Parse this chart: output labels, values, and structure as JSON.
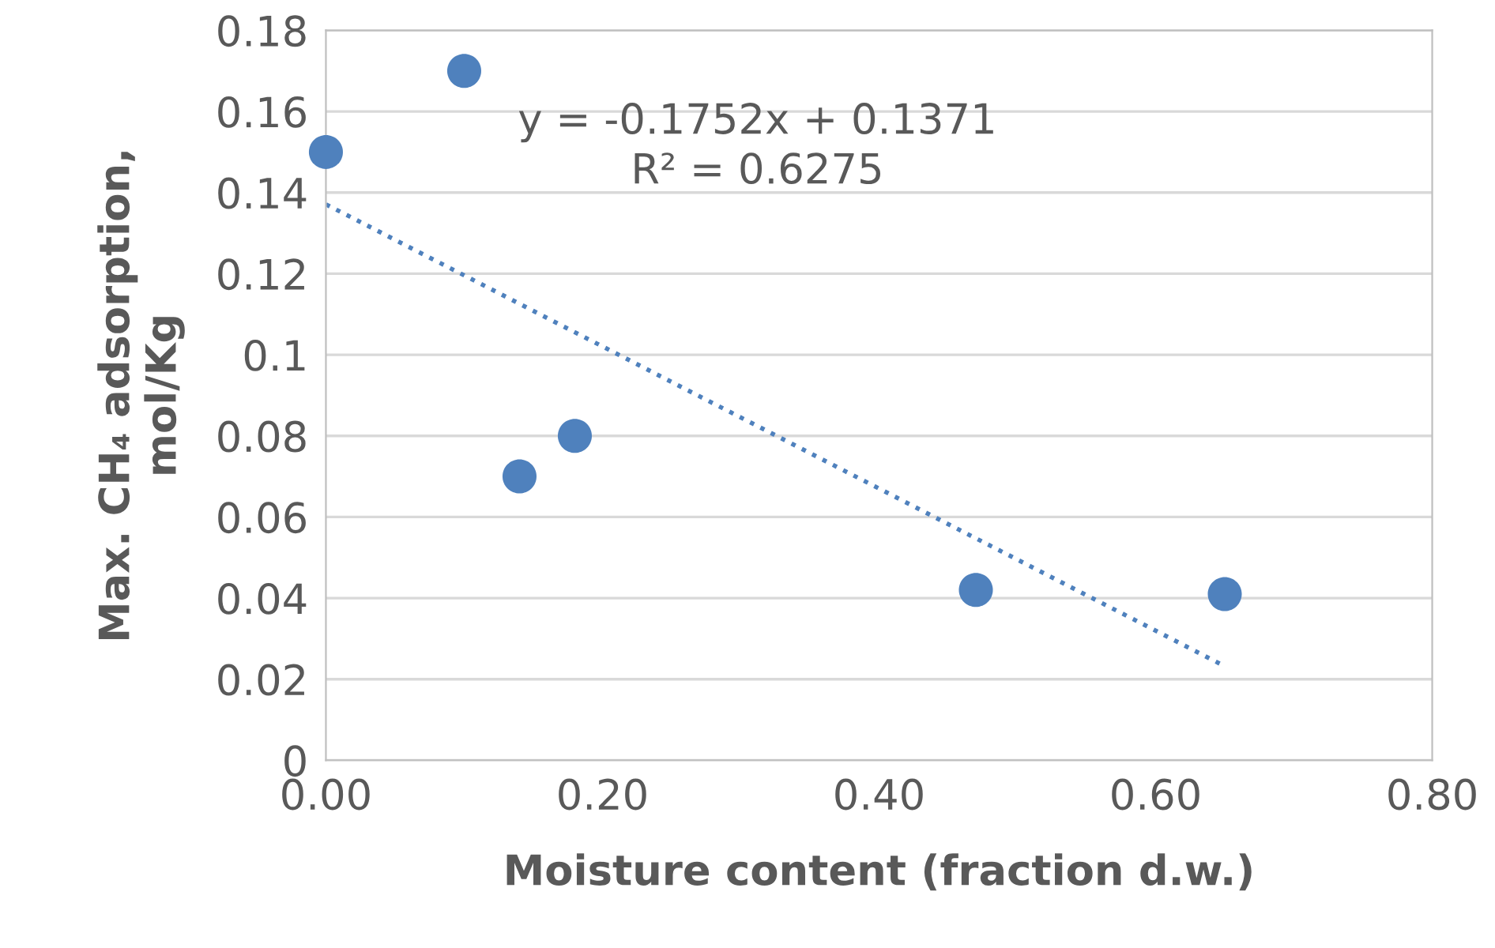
{
  "chart_data": {
    "type": "scatter",
    "xlabel": "Moisture content (fraction d.w.)",
    "ylabel": "Max. CH₄ adsorption,\nmol/Kg",
    "series": [
      {
        "color": "#4f81bd",
        "x": [
          0.0,
          0.1,
          0.14,
          0.18,
          0.47,
          0.65
        ],
        "values": [
          0.15,
          0.17,
          0.07,
          0.08,
          0.042,
          0.041
        ],
        "marker": "circle"
      },
      {
        "type": "line",
        "color": "#4f81bd",
        "x": [
          0.0,
          0.65
        ],
        "values": [
          0.1371,
          0.0232
        ],
        "line_style": "dotted",
        "marker": "none"
      }
    ],
    "annotations": [
      {
        "text": "y = -0.1752x + 0.1371\nR² = 0.6275"
      }
    ],
    "xlim": [
      0,
      0.8
    ],
    "xticks": [
      {
        "value": 0,
        "label": "0.00"
      },
      {
        "value": 0.2,
        "label": "0.20"
      },
      {
        "value": 0.4,
        "label": "0.40"
      },
      {
        "value": 0.6,
        "label": "0.60"
      },
      {
        "value": 0.8,
        "label": "0.80"
      }
    ],
    "ylim": [
      0,
      0.18
    ],
    "yticks": [
      0,
      0.02,
      0.04,
      0.06,
      0.08,
      0.1,
      0.12,
      0.14,
      0.16,
      0.18
    ],
    "grid": "y",
    "legend": false
  }
}
